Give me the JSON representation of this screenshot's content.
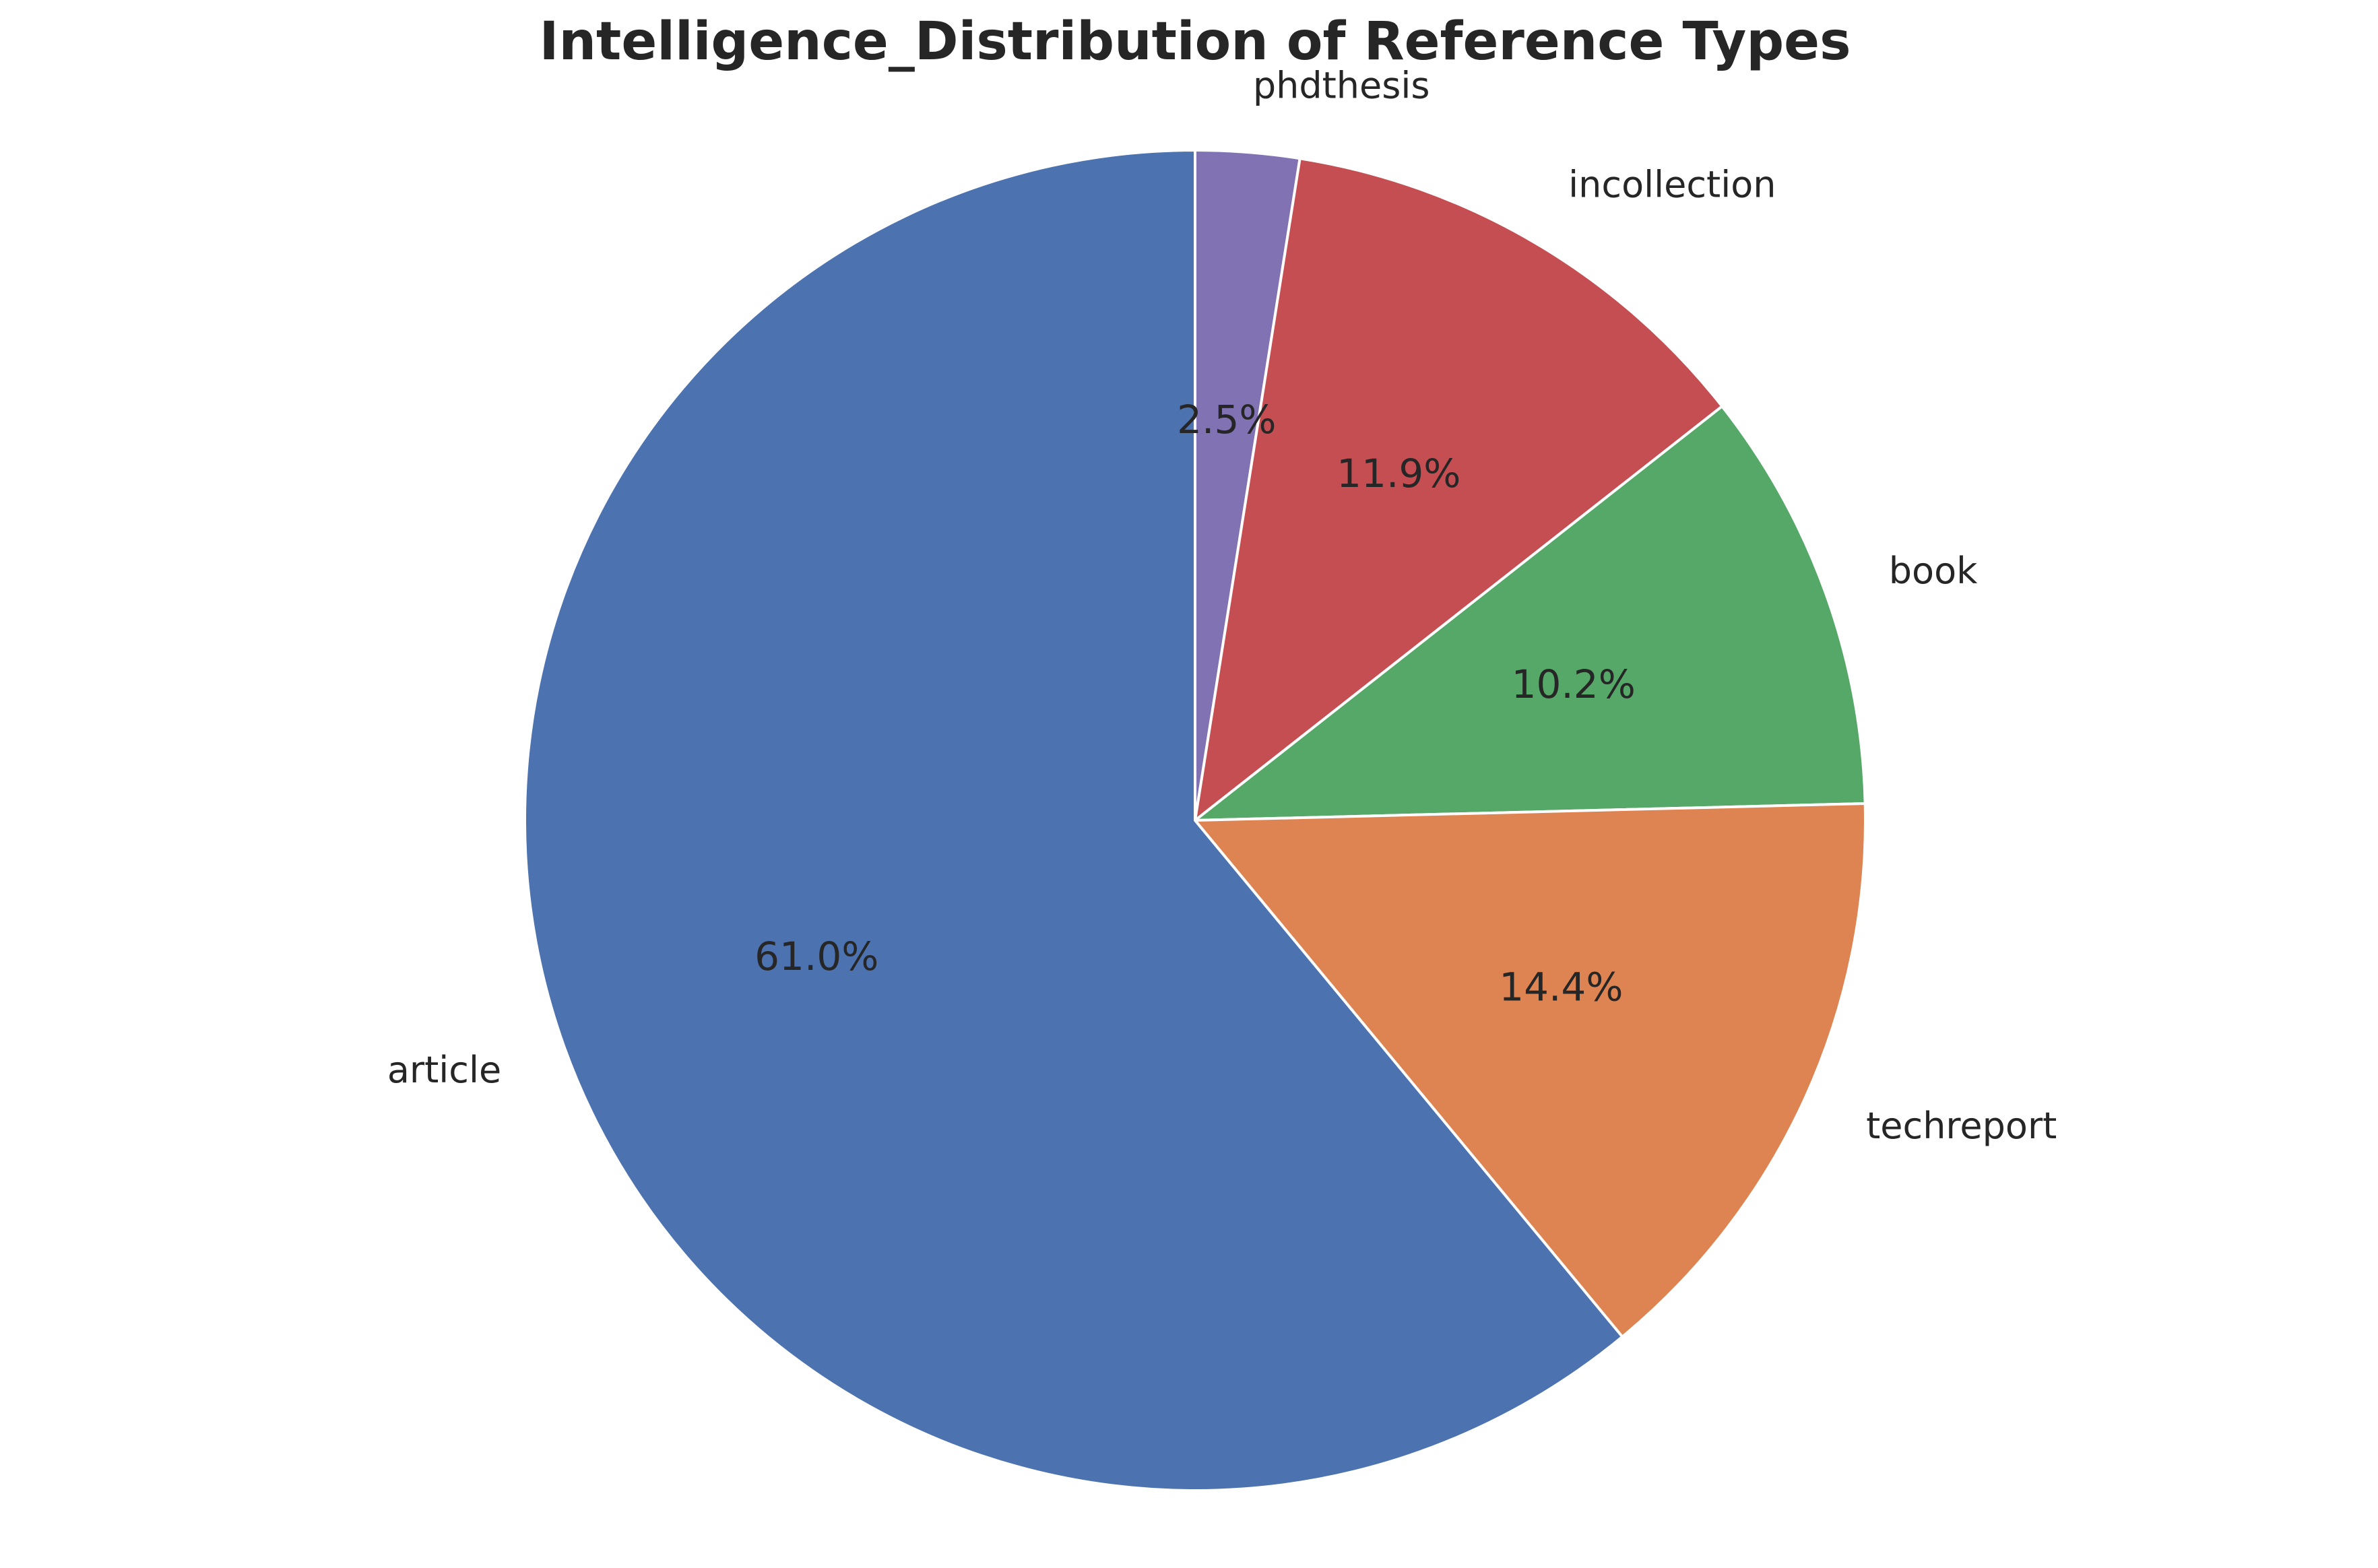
{
  "chart_data": {
    "type": "pie",
    "title": "Intelligence_Distribution of Reference Types",
    "slices": [
      {
        "label": "phdthesis",
        "value": 2.5,
        "pct_label": "2.5%",
        "color": "#8172b3"
      },
      {
        "label": "incollection",
        "value": 11.9,
        "pct_label": "11.9%",
        "color": "#c44e52"
      },
      {
        "label": "book",
        "value": 10.2,
        "pct_label": "10.2%",
        "color": "#55a868"
      },
      {
        "label": "techreport",
        "value": 14.4,
        "pct_label": "14.4%",
        "color": "#dd8452"
      },
      {
        "label": "article",
        "value": 61.0,
        "pct_label": "61.0%",
        "color": "#4c72b0"
      }
    ],
    "start_angle": "top (12 o'clock)",
    "direction": "clockwise"
  }
}
